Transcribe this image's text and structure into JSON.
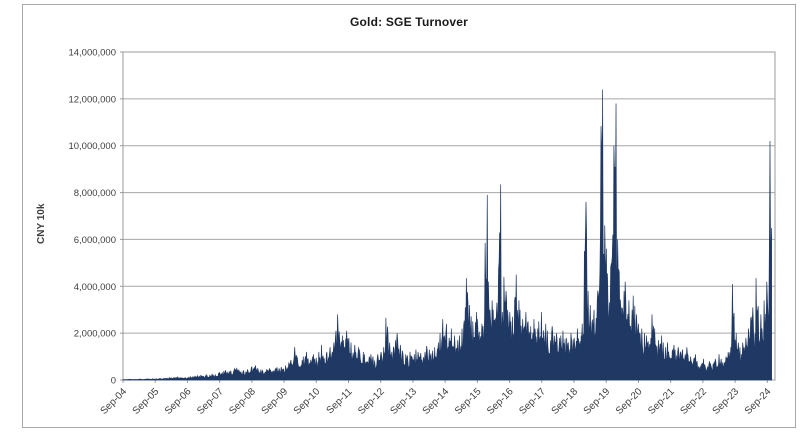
{
  "figure": {
    "title": "Gold: SGE Turnover"
  },
  "chart_data": {
    "type": "area",
    "title": "Gold: SGE Turnover",
    "xlabel": "",
    "ylabel": "CNY 10k",
    "ylim": [
      0,
      14000000
    ],
    "y_tick_labels": [
      "0",
      "2,000,000",
      "4,000,000",
      "6,000,000",
      "8,000,000",
      "10,000,000",
      "12,000,000",
      "14,000,000"
    ],
    "x_tick_labels": [
      "Sep-04",
      "Sep-05",
      "Sep-06",
      "Sep-07",
      "Sep-08",
      "Sep-09",
      "Sep-10",
      "Sep-11",
      "Sep-12",
      "Sep-13",
      "Sep-14",
      "Sep-15",
      "Sep-16",
      "Sep-17",
      "Sep-18",
      "Sep-19",
      "Sep-20",
      "Sep-21",
      "Sep-22",
      "Sep-23",
      "Sep-24"
    ],
    "grid": "horizontal",
    "legend": "none",
    "series": [
      {
        "name": "Gold: SGE Turnover",
        "start_month": "Sep-2004",
        "frequency": "monthly envelope of daily turnover",
        "value_unit": "CNY 10k",
        "value_scale": 1000000,
        "values_millions": [
          0.02,
          0.02,
          0.03,
          0.03,
          0.03,
          0.03,
          0.04,
          0.03,
          0.04,
          0.05,
          0.04,
          0.05,
          0.05,
          0.06,
          0.06,
          0.07,
          0.08,
          0.1,
          0.09,
          0.11,
          0.13,
          0.1,
          0.09,
          0.1,
          0.12,
          0.14,
          0.16,
          0.18,
          0.16,
          0.2,
          0.18,
          0.22,
          0.2,
          0.24,
          0.22,
          0.28,
          0.32,
          0.38,
          0.42,
          0.35,
          0.4,
          0.48,
          0.52,
          0.42,
          0.38,
          0.4,
          0.45,
          0.5,
          0.58,
          0.62,
          0.5,
          0.45,
          0.42,
          0.46,
          0.5,
          0.44,
          0.48,
          0.54,
          0.5,
          0.56,
          0.62,
          0.72,
          0.85,
          0.95,
          1.4,
          0.95,
          0.85,
          1.0,
          1.2,
          0.9,
          1.0,
          1.1,
          0.95,
          1.2,
          1.5,
          1.1,
          1.2,
          1.4,
          1.6,
          2.1,
          2.8,
          1.9,
          1.7,
          2.1,
          1.8,
          1.6,
          1.5,
          1.4,
          1.3,
          1.2,
          1.1,
          1.0,
          1.1,
          1.0,
          0.95,
          1.1,
          1.2,
          1.4,
          2.65,
          1.6,
          1.4,
          1.7,
          2.0,
          1.5,
          1.25,
          1.1,
          1.05,
          1.2,
          1.1,
          1.3,
          1.2,
          1.15,
          1.2,
          1.45,
          1.3,
          1.25,
          1.4,
          1.6,
          2.0,
          2.6,
          2.4,
          1.8,
          2.2,
          1.9,
          1.7,
          1.9,
          2.2,
          3.1,
          4.35,
          3.2,
          2.5,
          2.9,
          2.6,
          2.4,
          2.8,
          7.9,
          4.2,
          3.4,
          3.0,
          3.3,
          8.35,
          2.9,
          4.4,
          3.4,
          2.9,
          2.7,
          4.5,
          3.4,
          3.0,
          2.6,
          2.9,
          2.5,
          2.3,
          2.6,
          2.2,
          2.5,
          2.9,
          2.4,
          2.1,
          2.0,
          2.3,
          2.0,
          1.8,
          1.9,
          2.1,
          1.8,
          1.6,
          2.0,
          1.8,
          2.2,
          1.9,
          2.4,
          7.6,
          3.8,
          3.2,
          3.0,
          3.4,
          4.6,
          12.4,
          6.6,
          5.6,
          4.8,
          6.2,
          11.8,
          6.0,
          4.6,
          3.8,
          4.2,
          3.4,
          3.0,
          3.6,
          2.8,
          2.4,
          2.2,
          2.0,
          1.9,
          1.8,
          2.8,
          2.2,
          1.7,
          1.9,
          1.6,
          1.4,
          1.6,
          1.3,
          1.5,
          1.2,
          1.4,
          1.3,
          1.1,
          1.4,
          1.0,
          0.9,
          1.1,
          0.8,
          0.7,
          0.9,
          0.6,
          0.8,
          0.7,
          0.9,
          0.8,
          1.1,
          0.9,
          1.0,
          1.2,
          1.4,
          4.1,
          2.0,
          1.6,
          1.4,
          1.6,
          1.8,
          2.2,
          3.1,
          2.4,
          4.35,
          2.8,
          2.2,
          3.4,
          4.2,
          10.2
        ]
      }
    ],
    "colors": {
      "series": "#1f3864",
      "gridline": "#a6a6a6",
      "plot_border": "#9b9b9b",
      "figure_border": "#a9a9a9",
      "tick_text": "#404040",
      "title_text": "#1a1a1a"
    },
    "texture": {
      "seed": 11,
      "subsamples_per_month": 5,
      "min_factor": 0.5,
      "rand_span": 0.38
    }
  }
}
